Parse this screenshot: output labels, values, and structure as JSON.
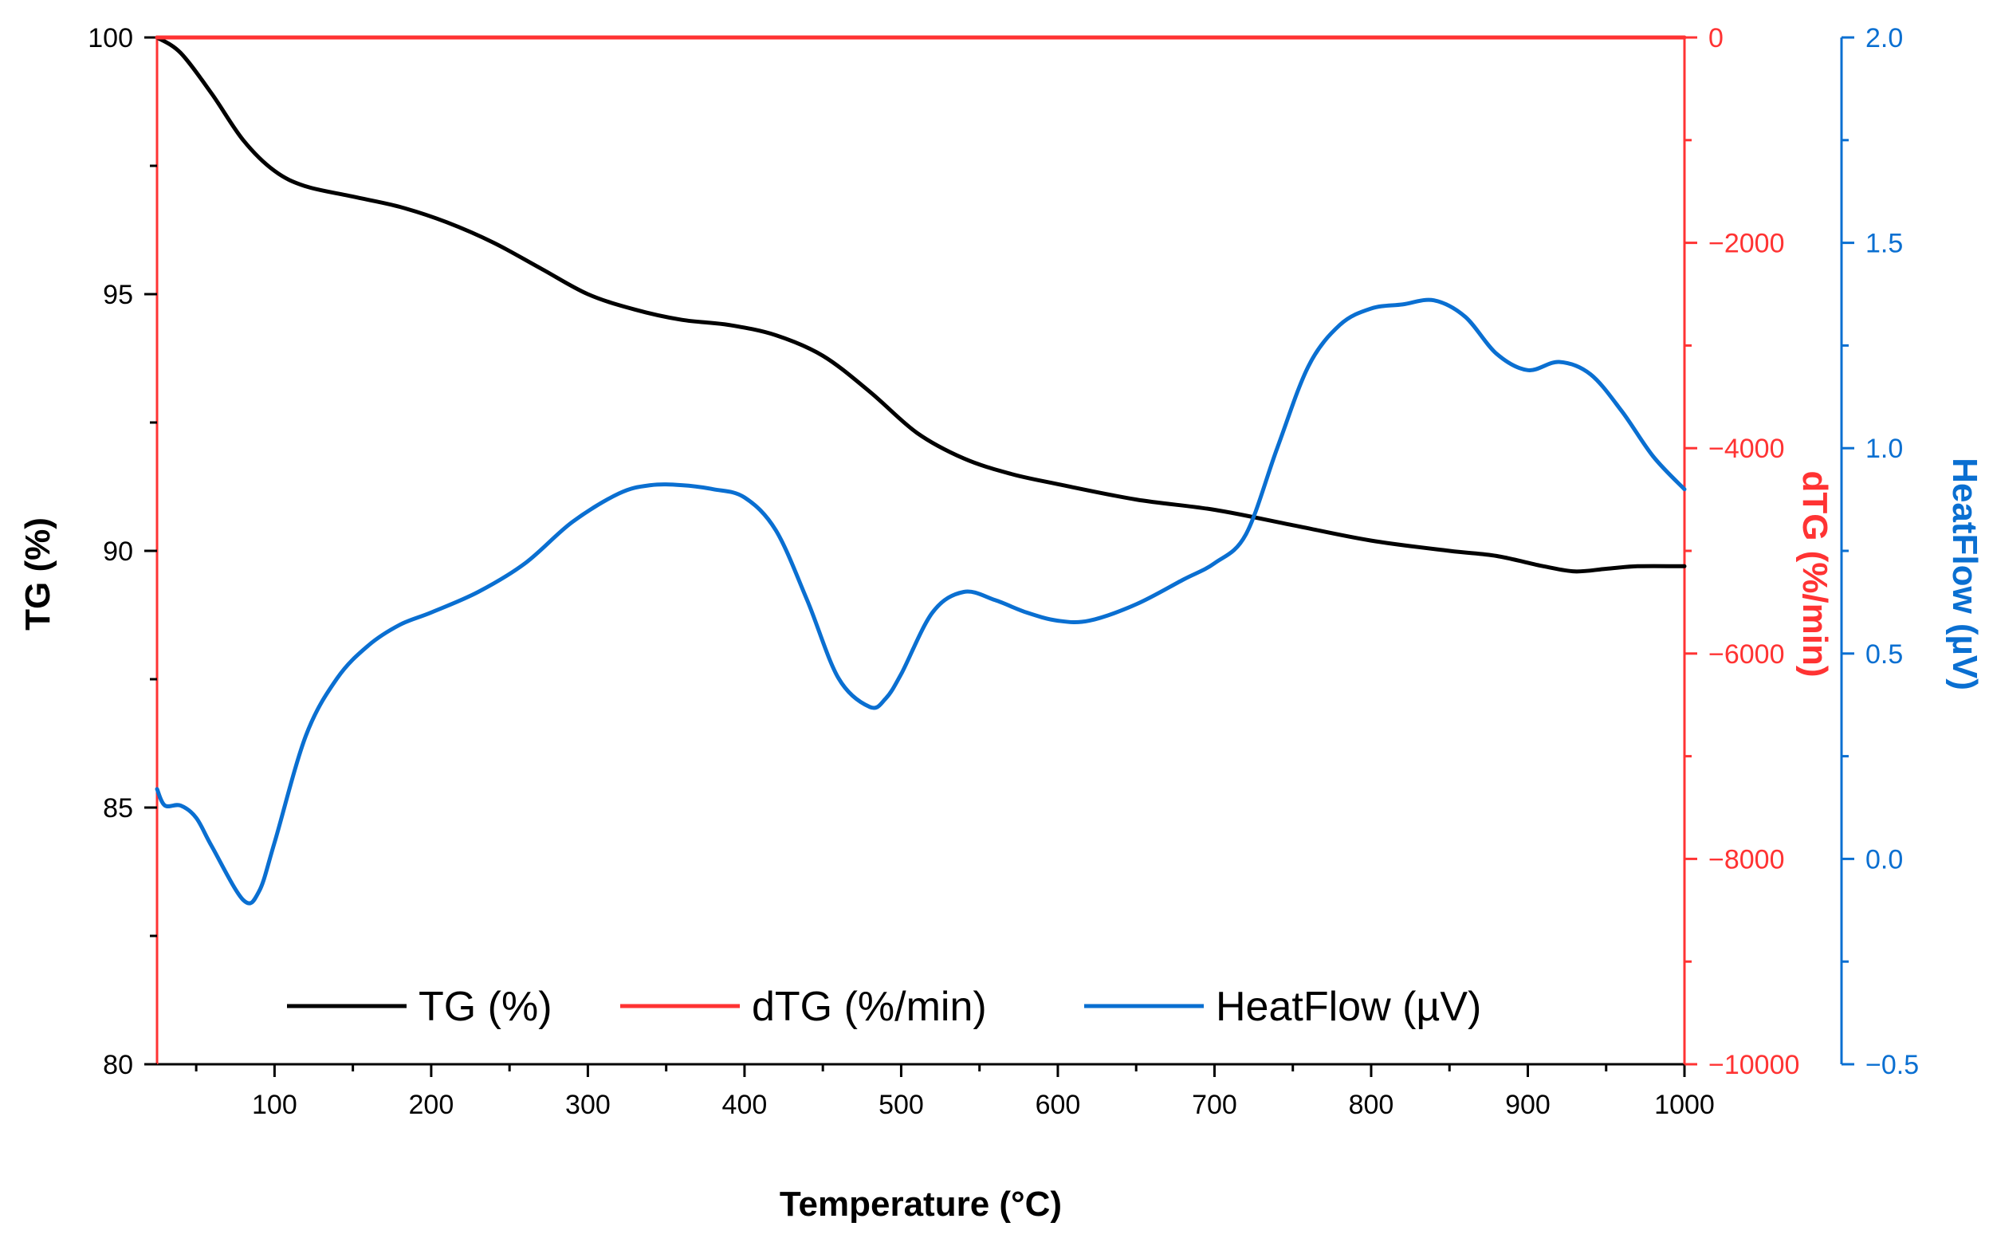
{
  "chart_data": {
    "type": "line",
    "title": "",
    "xlabel": "Temperature (°C)",
    "xlim": [
      25,
      1000
    ],
    "xticks": [
      100,
      200,
      300,
      400,
      500,
      600,
      700,
      800,
      900,
      1000
    ],
    "y_axes": {
      "left": {
        "label": "TG (%)",
        "lim": [
          80,
          100
        ],
        "ticks": [
          80,
          85,
          90,
          95,
          100
        ],
        "color": "#000000"
      },
      "right1": {
        "label": "dTG (%/min)",
        "lim": [
          -10000,
          0
        ],
        "ticks": [
          -10000,
          -8000,
          -6000,
          -4000,
          -2000,
          0
        ],
        "tick_labels": [
          "−10000",
          "−8000",
          "−6000",
          "−4000",
          "−2000",
          "0"
        ],
        "color": "#ff3333"
      },
      "right2": {
        "label": "HeatFlow (µV)",
        "lim": [
          -0.5,
          2.0
        ],
        "ticks": [
          -0.5,
          0.0,
          0.5,
          1.0,
          1.5,
          2.0
        ],
        "tick_labels": [
          "−0.5",
          "0.0",
          "0.5",
          "1.0",
          "1.5",
          "2.0"
        ],
        "color": "#0a6fd1"
      }
    },
    "series": [
      {
        "name": "TG  (%)",
        "axis": "left",
        "color": "#000000",
        "x": [
          25,
          40,
          60,
          80,
          100,
          120,
          150,
          180,
          210,
          240,
          270,
          300,
          330,
          360,
          390,
          420,
          450,
          480,
          510,
          540,
          570,
          600,
          650,
          700,
          750,
          800,
          850,
          880,
          910,
          930,
          950,
          970,
          1000
        ],
        "y": [
          100,
          99.7,
          98.9,
          98.0,
          97.4,
          97.1,
          96.9,
          96.7,
          96.4,
          96.0,
          95.5,
          95.0,
          94.7,
          94.5,
          94.4,
          94.2,
          93.8,
          93.1,
          92.3,
          91.8,
          91.5,
          91.3,
          91.0,
          90.8,
          90.5,
          90.2,
          90.0,
          89.9,
          89.7,
          89.6,
          89.65,
          89.7,
          89.7
        ]
      },
      {
        "name": "dTG  (%/min)",
        "axis": "right1",
        "color": "#ff3333",
        "x": [
          25,
          1000
        ],
        "y": [
          0,
          0
        ]
      },
      {
        "name": "HeatFlow  (µV)",
        "axis": "right2",
        "color": "#0a6fd1",
        "x": [
          25,
          30,
          40,
          50,
          60,
          80,
          90,
          100,
          120,
          140,
          160,
          180,
          200,
          230,
          260,
          290,
          320,
          340,
          360,
          380,
          400,
          420,
          440,
          460,
          480,
          490,
          500,
          520,
          540,
          560,
          580,
          600,
          620,
          650,
          680,
          700,
          720,
          740,
          760,
          780,
          800,
          820,
          840,
          860,
          880,
          900,
          920,
          940,
          960,
          980,
          1000
        ],
        "y": [
          0.17,
          0.13,
          0.13,
          0.1,
          0.03,
          -0.1,
          -0.08,
          0.04,
          0.3,
          0.44,
          0.52,
          0.57,
          0.6,
          0.65,
          0.72,
          0.82,
          0.89,
          0.91,
          0.91,
          0.9,
          0.88,
          0.8,
          0.63,
          0.44,
          0.37,
          0.39,
          0.45,
          0.6,
          0.65,
          0.63,
          0.6,
          0.58,
          0.58,
          0.62,
          0.68,
          0.72,
          0.79,
          1.0,
          1.2,
          1.3,
          1.34,
          1.35,
          1.36,
          1.32,
          1.23,
          1.19,
          1.21,
          1.18,
          1.09,
          0.98,
          0.9
        ]
      }
    ],
    "legend": {
      "position": "bottom-center",
      "entries": [
        "TG  (%)",
        "dTG  (%/min)",
        "HeatFlow  (µV)"
      ]
    }
  }
}
